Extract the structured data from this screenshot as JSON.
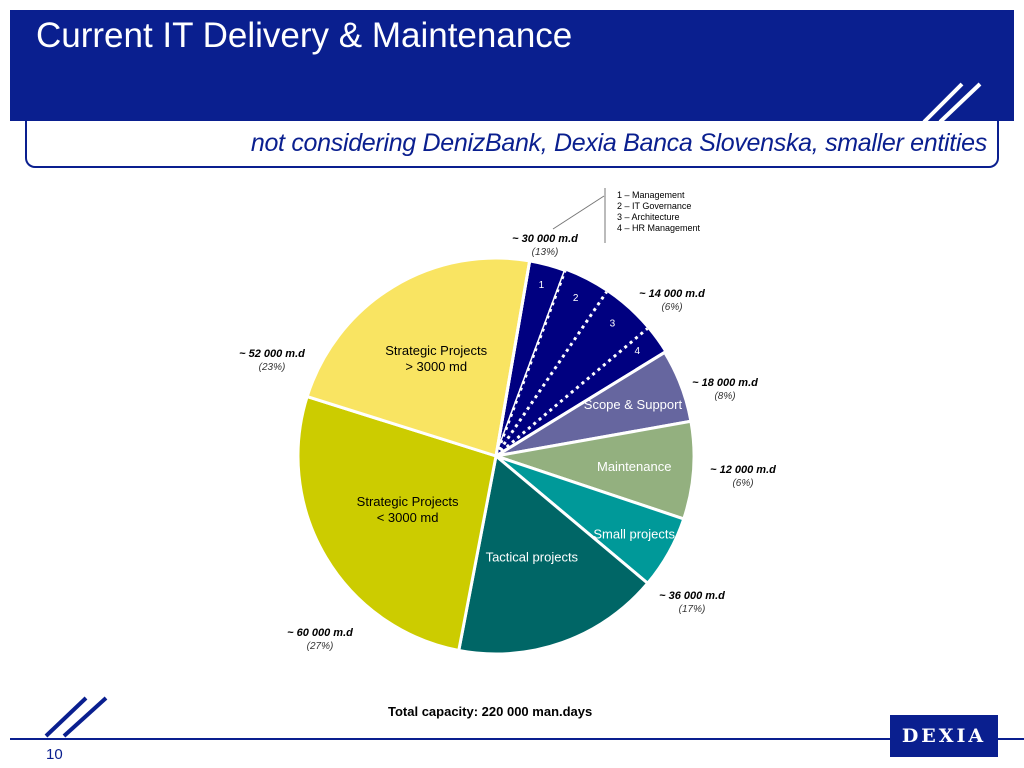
{
  "header": {
    "title": "Current IT Delivery & Maintenance",
    "subtitle": "not considering DenizBank, Dexia Banca Slovenska, smaller entities"
  },
  "legend_note": [
    "1 – Management",
    "2 – IT Governance",
    "3 – Architecture",
    "4 – HR Management"
  ],
  "total": "Total capacity: 220 000 man.days",
  "footer": {
    "page_number": "10",
    "logo": "DEXIA"
  },
  "colors": {
    "brand": "#0a1f8f"
  },
  "chart_data": {
    "type": "pie",
    "total_label": "Total capacity: 220 000 man.days",
    "slices": [
      {
        "label": "",
        "value": 2.98,
        "color": "#000080"
      },
      {
        "label": "",
        "value": 3.78,
        "color": "#000080"
      },
      {
        "label": "",
        "value": 4.45,
        "color": "#000080"
      },
      {
        "label": "",
        "value": 2.38,
        "color": "#000080"
      },
      {
        "label": "Scope & Support",
        "value": 6,
        "color": "#66669f"
      },
      {
        "label": "Maintenance",
        "value": 8,
        "color": "#93b07f"
      },
      {
        "label": "Small  projects",
        "value": 6,
        "color": "#009999"
      },
      {
        "label": "Tactical projects",
        "value": 17,
        "color": "#006666"
      },
      {
        "label": "Strategic Projects\n< 3000 md",
        "value": 27,
        "color": "#cccc00"
      },
      {
        "label": "Strategic Projects\n> 3000 md",
        "value": 23,
        "color": "#f9e462"
      }
    ],
    "segment_numbers": [
      "1",
      "2",
      "3",
      "4"
    ],
    "callouts": [
      {
        "value": "~ 30 000 m.d",
        "pct": "(13%)"
      },
      {
        "value": "~ 14 000 m.d",
        "pct": "(6%)"
      },
      {
        "value": "~ 18 000 m.d",
        "pct": "(8%)"
      },
      {
        "value": "~ 12 000 m.d",
        "pct": "(6%)"
      },
      {
        "value": "~ 36 000 m.d",
        "pct": "(17%)"
      },
      {
        "value": "~ 60 000 m.d",
        "pct": "(27%)"
      },
      {
        "value": "~ 52 000 m.d",
        "pct": "(23%)"
      }
    ]
  }
}
